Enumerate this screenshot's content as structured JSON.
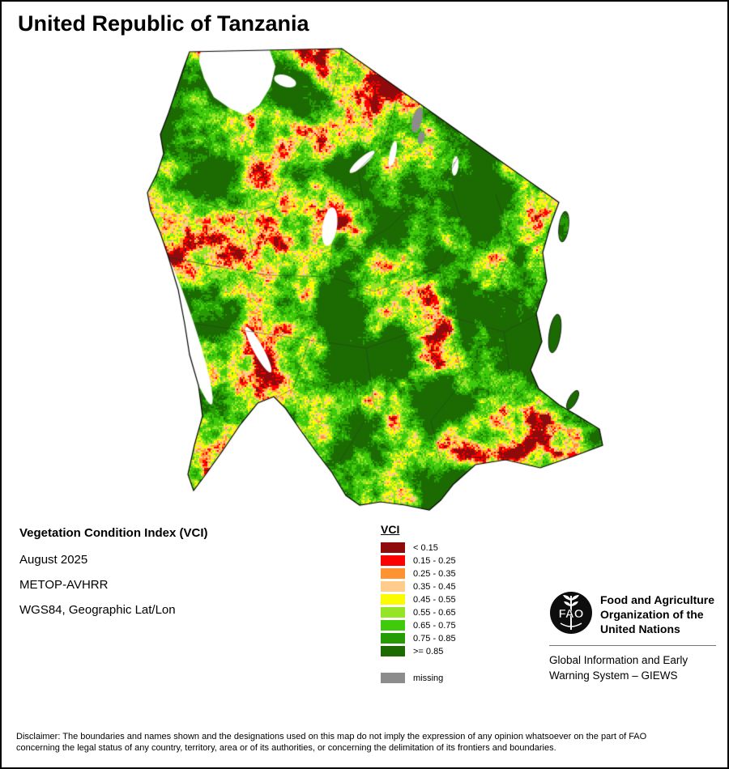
{
  "title": "United Republic of Tanzania",
  "info": {
    "line1": "Vegetation Condition Index (VCI)",
    "line2": "August 2025",
    "line3": "METOP-AVHRR",
    "line4": "WGS84, Geographic Lat/Lon"
  },
  "legend": {
    "header": "VCI",
    "items": [
      {
        "label": "< 0.15",
        "color": "#8f0b0b"
      },
      {
        "label": "0.15 - 0.25",
        "color": "#ff0000"
      },
      {
        "label": "0.25 - 0.35",
        "color": "#ff9231"
      },
      {
        "label": "0.35 - 0.45",
        "color": "#ffcc8b"
      },
      {
        "label": "0.45 - 0.55",
        "color": "#fcfc00"
      },
      {
        "label": "0.55 - 0.65",
        "color": "#95e426"
      },
      {
        "label": "0.65 - 0.75",
        "color": "#3fca0c"
      },
      {
        "label": "0.75 - 0.85",
        "color": "#269c04"
      },
      {
        "label": ">= 0.85",
        "color": "#1b6b02"
      }
    ],
    "missing": {
      "label": "missing",
      "color": "#8c8c8c"
    }
  },
  "fao": {
    "logo": "FAO",
    "org_line1": "Food and Agriculture",
    "org_line2": "Organization of the",
    "org_line3": "United Nations",
    "giews_line1": "Global Information and Early",
    "giews_line2": "Warning System – GIEWS"
  },
  "disclaimer": {
    "line1": "Disclaimer: The boundaries and names shown and the designations used on this map do not imply the expression of any opinion whatsoever on the part of FAO",
    "line2": "concerning the legal status of any country, territory, area or of its authorities, or concerning the delimitation of its frontiers and boundaries."
  }
}
